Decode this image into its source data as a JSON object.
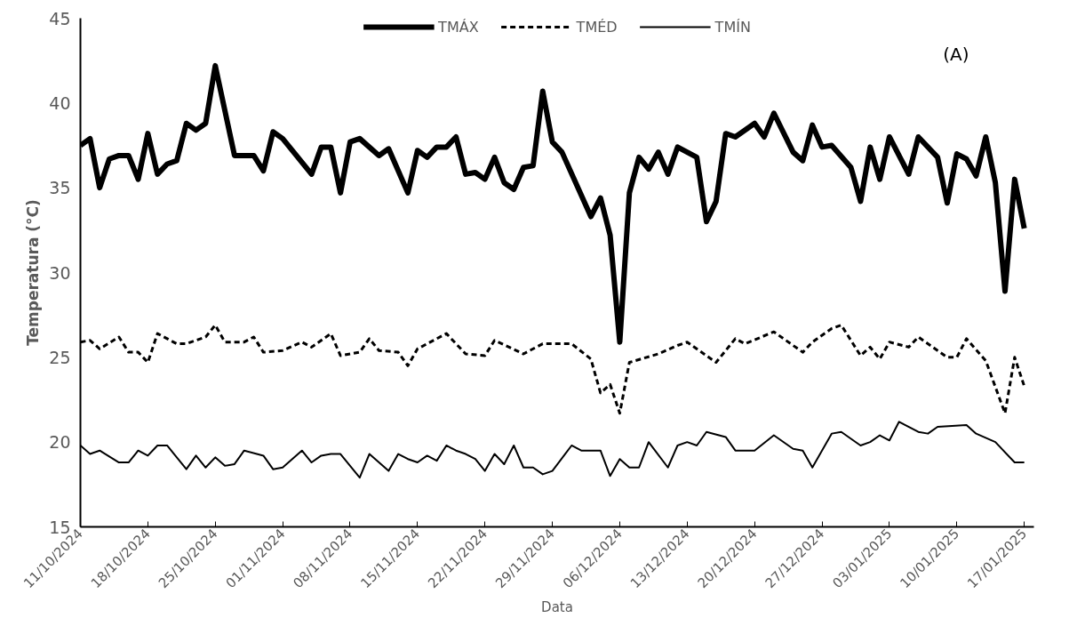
{
  "chart_data": {
    "type": "line",
    "xlabel": "Data",
    "ylabel": "Temperatura (°C)",
    "annotations": [
      "(A)"
    ],
    "legend": "top",
    "grid": false,
    "marker": "none",
    "xlim": [
      "2024-10-11",
      "2025-01-18"
    ],
    "ylim": [
      15,
      45
    ],
    "yticks": [
      15,
      20,
      25,
      30,
      35,
      40,
      45
    ],
    "xticks": [
      {
        "value": "2024-10-11",
        "label": "11/10/2024"
      },
      {
        "value": "2024-10-18",
        "label": "18/10/2024"
      },
      {
        "value": "2024-10-25",
        "label": "25/10/2024"
      },
      {
        "value": "2024-11-01",
        "label": "01/11/2024"
      },
      {
        "value": "2024-11-08",
        "label": "08/11/2024"
      },
      {
        "value": "2024-11-15",
        "label": "15/11/2024"
      },
      {
        "value": "2024-11-22",
        "label": "22/11/2024"
      },
      {
        "value": "2024-11-29",
        "label": "29/11/2024"
      },
      {
        "value": "2024-12-06",
        "label": "06/12/2024"
      },
      {
        "value": "2024-12-13",
        "label": "13/12/2024"
      },
      {
        "value": "2024-12-20",
        "label": "20/12/2024"
      },
      {
        "value": "2024-12-27",
        "label": "27/12/2024"
      },
      {
        "value": "2025-01-03",
        "label": "03/01/2025"
      },
      {
        "value": "2025-01-10",
        "label": "10/01/2025"
      },
      {
        "value": "2025-01-17",
        "label": "17/01/2025"
      }
    ],
    "series": [
      {
        "name": "TMÁX",
        "color": "#000000",
        "line_style": "solid",
        "x": [
          "2024-10-11",
          "2024-10-12",
          "2024-10-13",
          "2024-10-14",
          "2024-10-15",
          "2024-10-16",
          "2024-10-17",
          "2024-10-18",
          "2024-10-19",
          "2024-10-20",
          "2024-10-21",
          "2024-10-22",
          "2024-10-23",
          "2024-10-24",
          "2024-10-25",
          "2024-10-27",
          "2024-10-29",
          "2024-10-30",
          "2024-10-31",
          "2024-11-01",
          "2024-11-04",
          "2024-11-05",
          "2024-11-06",
          "2024-11-07",
          "2024-11-08",
          "2024-11-09",
          "2024-11-11",
          "2024-11-12",
          "2024-11-14",
          "2024-11-15",
          "2024-11-16",
          "2024-11-17",
          "2024-11-18",
          "2024-11-19",
          "2024-11-20",
          "2024-11-21",
          "2024-11-22",
          "2024-11-23",
          "2024-11-24",
          "2024-11-25",
          "2024-11-26",
          "2024-11-27",
          "2024-11-28",
          "2024-11-29",
          "2024-11-30",
          "2024-12-03",
          "2024-12-04",
          "2024-12-05",
          "2024-12-06",
          "2024-12-07",
          "2024-12-08",
          "2024-12-09",
          "2024-12-10",
          "2024-12-11",
          "2024-12-12",
          "2024-12-14",
          "2024-12-15",
          "2024-12-16",
          "2024-12-17",
          "2024-12-18",
          "2024-12-20",
          "2024-12-21",
          "2024-12-22",
          "2024-12-24",
          "2024-12-25",
          "2024-12-26",
          "2024-12-27",
          "2024-12-28",
          "2024-12-30",
          "2024-12-31",
          "2025-01-01",
          "2025-01-02",
          "2025-01-03",
          "2025-01-05",
          "2025-01-06",
          "2025-01-08",
          "2025-01-09",
          "2025-01-10",
          "2025-01-11",
          "2025-01-12",
          "2025-01-13",
          "2025-01-14",
          "2025-01-15",
          "2025-01-16",
          "2025-01-17"
        ],
        "values": [
          37.5,
          37.9,
          35.0,
          36.7,
          36.9,
          36.9,
          35.5,
          38.2,
          35.8,
          36.4,
          36.6,
          38.8,
          38.4,
          38.8,
          42.2,
          36.9,
          36.9,
          36.0,
          38.3,
          37.9,
          35.8,
          37.4,
          37.4,
          34.7,
          37.7,
          37.9,
          36.9,
          37.3,
          34.7,
          37.2,
          36.8,
          37.4,
          37.4,
          38.0,
          35.8,
          35.9,
          35.5,
          36.8,
          35.3,
          34.9,
          36.2,
          36.3,
          40.7,
          37.7,
          37.1,
          33.3,
          34.4,
          32.2,
          25.9,
          34.7,
          36.8,
          36.1,
          37.1,
          35.8,
          37.4,
          36.8,
          33.0,
          34.2,
          38.2,
          38.0,
          38.8,
          38.0,
          39.4,
          37.1,
          36.6,
          38.7,
          37.4,
          37.5,
          36.2,
          34.2,
          37.4,
          35.5,
          38.0,
          35.8,
          38.0,
          36.8,
          34.1,
          37.0,
          36.7,
          35.7,
          38.0,
          35.3,
          28.9,
          35.5,
          32.6
        ]
      },
      {
        "name": "TMÉD",
        "color": "#000000",
        "line_style": "dashed",
        "x": [
          "2024-10-11",
          "2024-10-12",
          "2024-10-13",
          "2024-10-15",
          "2024-10-16",
          "2024-10-17",
          "2024-10-18",
          "2024-10-19",
          "2024-10-21",
          "2024-10-22",
          "2024-10-24",
          "2024-10-25",
          "2024-10-26",
          "2024-10-28",
          "2024-10-29",
          "2024-10-30",
          "2024-11-01",
          "2024-11-03",
          "2024-11-04",
          "2024-11-06",
          "2024-11-07",
          "2024-11-09",
          "2024-11-10",
          "2024-11-11",
          "2024-11-13",
          "2024-11-14",
          "2024-11-15",
          "2024-11-18",
          "2024-11-20",
          "2024-11-22",
          "2024-11-23",
          "2024-11-26",
          "2024-11-28",
          "2024-12-01",
          "2024-12-03",
          "2024-12-04",
          "2024-12-05",
          "2024-12-06",
          "2024-12-07",
          "2024-12-10",
          "2024-12-12",
          "2024-12-13",
          "2024-12-16",
          "2024-12-18",
          "2024-12-19",
          "2024-12-22",
          "2024-12-25",
          "2024-12-26",
          "2024-12-28",
          "2024-12-29",
          "2024-12-31",
          "2025-01-01",
          "2025-01-02",
          "2025-01-03",
          "2025-01-05",
          "2025-01-06",
          "2025-01-09",
          "2025-01-10",
          "2025-01-11",
          "2025-01-13",
          "2025-01-15",
          "2025-01-16",
          "2025-01-17"
        ],
        "values": [
          25.9,
          26.0,
          25.5,
          26.2,
          25.3,
          25.3,
          24.7,
          26.4,
          25.8,
          25.8,
          26.2,
          26.9,
          25.9,
          25.9,
          26.2,
          25.3,
          25.4,
          25.9,
          25.6,
          26.4,
          25.1,
          25.3,
          26.1,
          25.4,
          25.3,
          24.5,
          25.5,
          26.4,
          25.2,
          25.1,
          26.0,
          25.2,
          25.8,
          25.8,
          24.9,
          22.9,
          23.4,
          21.7,
          24.7,
          25.2,
          25.7,
          25.9,
          24.7,
          26.1,
          25.8,
          26.5,
          25.3,
          25.9,
          26.7,
          26.9,
          25.1,
          25.6,
          24.9,
          25.9,
          25.6,
          26.2,
          25.0,
          25.0,
          26.1,
          24.8,
          21.7,
          25.0,
          23.3
        ]
      },
      {
        "name": "TMÍN",
        "color": "#000000",
        "line_style": "solid",
        "x": [
          "2024-10-11",
          "2024-10-12",
          "2024-10-13",
          "2024-10-15",
          "2024-10-16",
          "2024-10-17",
          "2024-10-18",
          "2024-10-19",
          "2024-10-20",
          "2024-10-22",
          "2024-10-23",
          "2024-10-24",
          "2024-10-25",
          "2024-10-26",
          "2024-10-27",
          "2024-10-28",
          "2024-10-30",
          "2024-10-31",
          "2024-11-01",
          "2024-11-03",
          "2024-11-04",
          "2024-11-05",
          "2024-11-06",
          "2024-11-07",
          "2024-11-09",
          "2024-11-10",
          "2024-11-12",
          "2024-11-13",
          "2024-11-14",
          "2024-11-15",
          "2024-11-16",
          "2024-11-17",
          "2024-11-18",
          "2024-11-19",
          "2024-11-20",
          "2024-11-21",
          "2024-11-22",
          "2024-11-23",
          "2024-11-24",
          "2024-11-25",
          "2024-11-26",
          "2024-11-27",
          "2024-11-28",
          "2024-11-29",
          "2024-12-01",
          "2024-12-02",
          "2024-12-04",
          "2024-12-05",
          "2024-12-06",
          "2024-12-07",
          "2024-12-08",
          "2024-12-09",
          "2024-12-11",
          "2024-12-12",
          "2024-12-13",
          "2024-12-14",
          "2024-12-15",
          "2024-12-17",
          "2024-12-18",
          "2024-12-20",
          "2024-12-22",
          "2024-12-24",
          "2024-12-25",
          "2024-12-26",
          "2024-12-28",
          "2024-12-29",
          "2024-12-31",
          "2025-01-01",
          "2025-01-02",
          "2025-01-03",
          "2025-01-04",
          "2025-01-06",
          "2025-01-07",
          "2025-01-08",
          "2025-01-11",
          "2025-01-12",
          "2025-01-14",
          "2025-01-16",
          "2025-01-17"
        ],
        "values": [
          19.8,
          19.3,
          19.5,
          18.8,
          18.8,
          19.5,
          19.2,
          19.8,
          19.8,
          18.4,
          19.2,
          18.5,
          19.1,
          18.6,
          18.7,
          19.5,
          19.2,
          18.4,
          18.5,
          19.5,
          18.8,
          19.2,
          19.3,
          19.3,
          17.9,
          19.3,
          18.3,
          19.3,
          19.0,
          18.8,
          19.2,
          18.9,
          19.8,
          19.5,
          19.3,
          19.0,
          18.3,
          19.3,
          18.7,
          19.8,
          18.5,
          18.5,
          18.1,
          18.3,
          19.8,
          19.5,
          19.5,
          18.0,
          19.0,
          18.5,
          18.5,
          20.0,
          18.5,
          19.8,
          20.0,
          19.8,
          20.6,
          20.3,
          19.5,
          19.5,
          20.4,
          19.6,
          19.5,
          18.5,
          20.5,
          20.6,
          19.8,
          20.0,
          20.4,
          20.1,
          21.2,
          20.6,
          20.5,
          20.9,
          21.0,
          20.5,
          20.0,
          18.8,
          18.8
        ]
      }
    ]
  }
}
